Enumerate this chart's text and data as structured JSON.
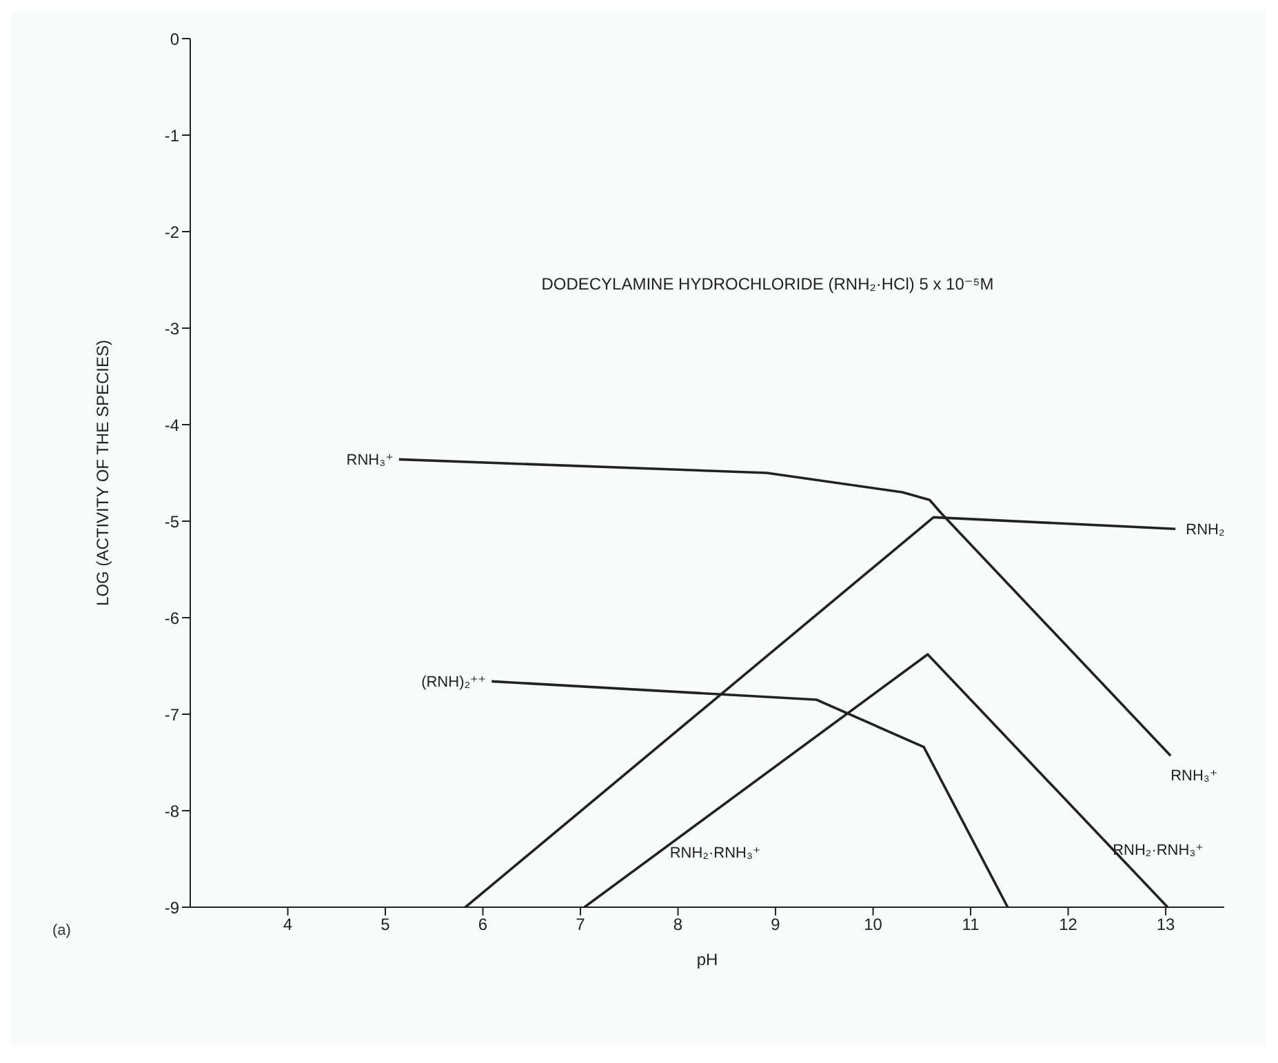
{
  "chart_data": {
    "type": "line",
    "title": "DODECYLAMINE HYDROCHLORIDE (RNH₂·HCl) 5 x 10⁻⁵M",
    "xlabel": "pH",
    "ylabel": "LOG (ACTIVITY OF THE SPECIES)",
    "xlim": [
      3,
      13.6
    ],
    "xticks": [
      4,
      5,
      6,
      7,
      8,
      9,
      10,
      11,
      12,
      13
    ],
    "ylim": [
      -9,
      0
    ],
    "yticks": [
      0,
      -1,
      -2,
      -3,
      -4,
      -5,
      -6,
      -7,
      -8,
      -9
    ],
    "grid": false,
    "legend": false,
    "marker": "none",
    "line_style": "solid",
    "series": [
      {
        "color": "#222222",
        "x": [
          5.14,
          8.91,
          10.3,
          10.58,
          10.7,
          13.05
        ],
        "values": [
          -4.36,
          -4.5,
          -4.7,
          -4.78,
          -4.92,
          -7.43
        ]
      },
      {
        "color": "#222222",
        "x": [
          5.82,
          10.62,
          13.1
        ],
        "values": [
          -9,
          -4.96,
          -5.08
        ]
      },
      {
        "color": "#222222",
        "x": [
          6.09,
          9.42,
          10.52,
          11.38
        ],
        "values": [
          -6.66,
          -6.85,
          -7.34,
          -9
        ]
      },
      {
        "color": "#222222",
        "x": [
          7.04,
          10.56,
          13.02
        ],
        "values": [
          -9,
          -6.38,
          -9
        ]
      }
    ],
    "annotations": [
      {
        "text": "RNH₃⁺",
        "x": 5.14,
        "y": -4.36
      },
      {
        "text": "RNH₂",
        "x": 13.15,
        "y": -5.08
      },
      {
        "text": "(RNH)₂⁺⁺",
        "x": 6.09,
        "y": -6.66
      },
      {
        "text": "RNH₃⁺",
        "x": 13.05,
        "y": -7.43
      },
      {
        "text": "RNH₂·RNH₃⁺",
        "x": 12.4,
        "y": -8.4
      },
      {
        "text": "RNH₂·RNH₃⁺",
        "x": 7.86,
        "y": -8.43
      },
      "(a)"
    ]
  }
}
